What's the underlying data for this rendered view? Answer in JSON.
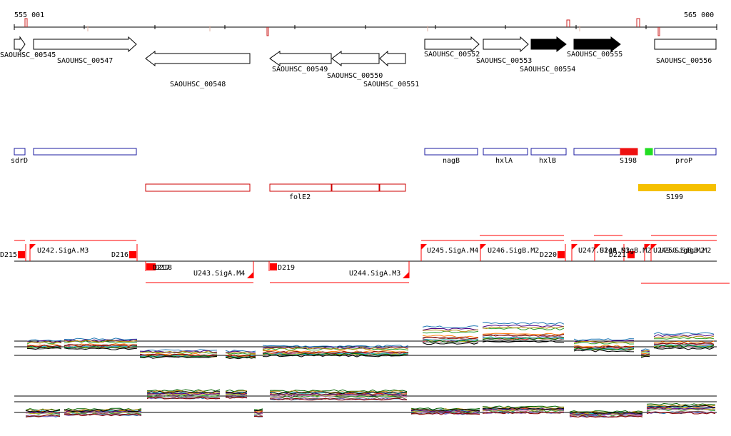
{
  "coords": {
    "start": "555 001",
    "end": "565 000"
  },
  "colors": {
    "gene_outline": "#000000",
    "gene_filled": "#000000",
    "feature_blue": "#1e1ea0",
    "feature_red": "#cc0000",
    "feature_green": "#22dd22",
    "feature_orange": "#f5c000",
    "segment_red": "#ff0000",
    "axis": "#000000"
  },
  "genes": [
    {
      "id": "g545",
      "label": "SAOUHSC_00545",
      "strand": "+",
      "filled": false
    },
    {
      "id": "g547",
      "label": "SAOUHSC_00547",
      "strand": "+",
      "filled": false
    },
    {
      "id": "g548",
      "label": "SAOUHSC_00548",
      "strand": "-",
      "filled": false
    },
    {
      "id": "g549",
      "label": "SAOUHSC_00549",
      "strand": "-",
      "filled": false
    },
    {
      "id": "g550",
      "label": "SAOUHSC_00550",
      "strand": "-",
      "filled": false
    },
    {
      "id": "g551",
      "label": "SAOUHSC_00551",
      "strand": "-",
      "filled": false
    },
    {
      "id": "g552",
      "label": "SAOUHSC_00552",
      "strand": "+",
      "filled": false
    },
    {
      "id": "g553",
      "label": "SAOUHSC_00553",
      "strand": "+",
      "filled": false
    },
    {
      "id": "g554",
      "label": "SAOUHSC_00554",
      "strand": "+",
      "filled": true
    },
    {
      "id": "g555",
      "label": "SAOUHSC_00555",
      "strand": "+",
      "filled": true
    },
    {
      "id": "g556",
      "label": "SAOUHSC_00556",
      "strand": "+",
      "filled": false
    }
  ],
  "annotations": [
    {
      "label": "sdrD"
    },
    {
      "label": ""
    },
    {
      "label": "nagB"
    },
    {
      "label": "hxlA"
    },
    {
      "label": "hxlB"
    },
    {
      "label": "S198"
    },
    {
      "label": ""
    },
    {
      "label": "proP"
    }
  ],
  "fol_label": "folE2",
  "s199_label": "S199",
  "segments": [
    {
      "label": "D215"
    },
    {
      "label": "U242.SigA.M3"
    },
    {
      "label": "D216"
    },
    {
      "label": "D217"
    },
    {
      "label": "D218"
    },
    {
      "label": "U243.SigA.M4"
    },
    {
      "label": "D219"
    },
    {
      "label": "U244.SigA.M3"
    },
    {
      "label": "U245.SigA.M4"
    },
    {
      "label": "U246.SigB.M2"
    },
    {
      "label": "D220"
    },
    {
      "label": "U247.SigA.M3"
    },
    {
      "label": "U248.SigB.M2"
    },
    {
      "label": "D221"
    },
    {
      "label": "U249.SigB.M2"
    },
    {
      "label": "U250.SigB.M2"
    }
  ]
}
